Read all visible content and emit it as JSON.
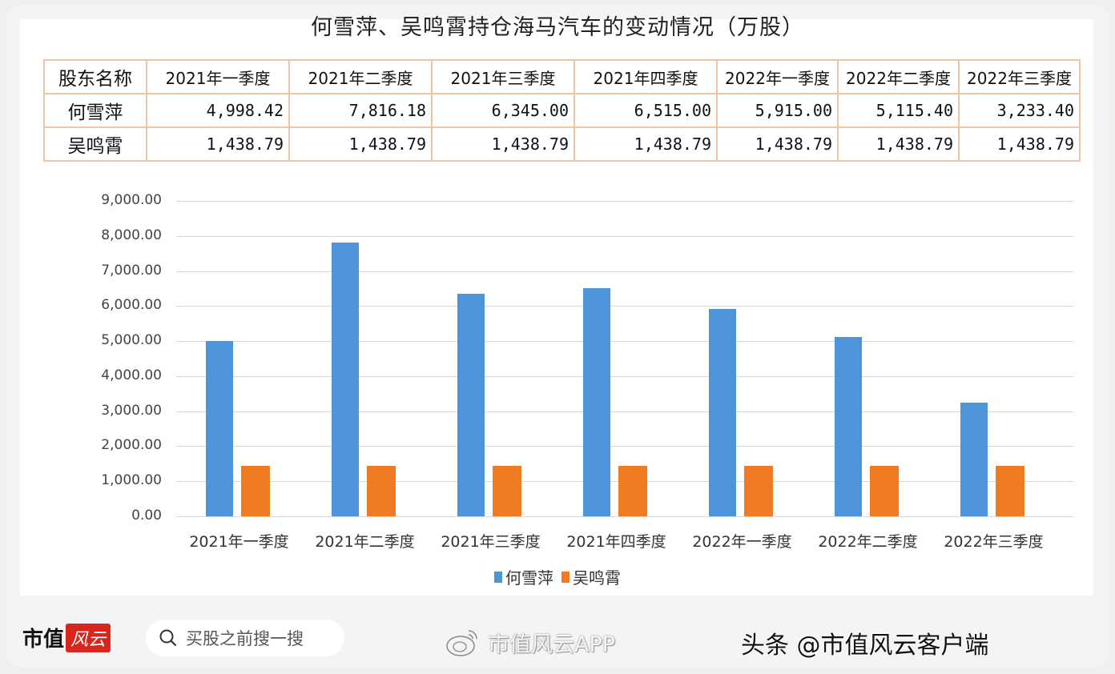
{
  "title": "何雪萍、吴鸣霄持仓海马汽车的变动情况（万股）",
  "table": {
    "header": [
      "股东名称",
      "2021年一季度",
      "2021年二季度",
      "2021年三季度",
      "2021年四季度",
      "2022年一季度",
      "2022年二季度",
      "2022年三季度"
    ],
    "rows": [
      {
        "name": "何雪萍",
        "values": [
          "4,998.42",
          "7,816.18",
          "6,345.00",
          "6,515.00",
          "5,915.00",
          "5,115.40",
          "3,233.40"
        ]
      },
      {
        "name": "吴鸣霄",
        "values": [
          "1,438.79",
          "1,438.79",
          "1,438.79",
          "1,438.79",
          "1,438.79",
          "1,438.79",
          "1,438.79"
        ]
      }
    ]
  },
  "chart_data": {
    "type": "bar",
    "title": "何雪萍、吴鸣霄持仓海马汽车的变动情况（万股）",
    "categories": [
      "2021年一季度",
      "2021年二季度",
      "2021年三季度",
      "2021年四季度",
      "2022年一季度",
      "2022年二季度",
      "2022年三季度"
    ],
    "series": [
      {
        "name": "何雪萍",
        "color": "#4e94d9",
        "values": [
          4998.42,
          7816.18,
          6345.0,
          6515.0,
          5915.0,
          5115.4,
          3233.4
        ]
      },
      {
        "name": "吴鸣霄",
        "color": "#ef7b22",
        "values": [
          1438.79,
          1438.79,
          1438.79,
          1438.79,
          1438.79,
          1438.79,
          1438.79
        ]
      }
    ],
    "yticks": [
      "0.00",
      "1,000.00",
      "2,000.00",
      "3,000.00",
      "4,000.00",
      "5,000.00",
      "6,000.00",
      "7,000.00",
      "8,000.00",
      "9,000.00"
    ],
    "ylim": [
      0,
      9000
    ],
    "xlabel": "",
    "ylabel": "",
    "grid": true,
    "legend_position": "bottom"
  },
  "footer": {
    "logo_text": "市值",
    "logo_red": "风云",
    "search_placeholder": "买股之前搜一搜",
    "weibo_text": "市值风云APP",
    "toutiao_text": "头条 @市值风云客户端"
  }
}
